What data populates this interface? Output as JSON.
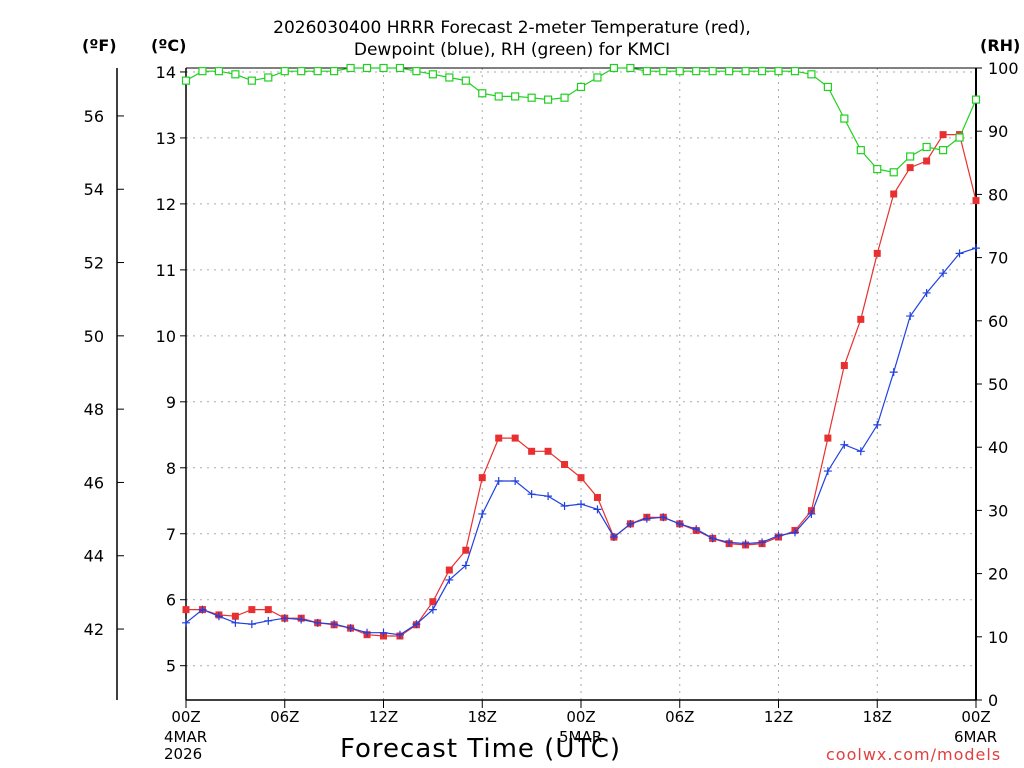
{
  "header": {
    "title_line1": "2026030400 HRRR Forecast 2-meter Temperature (red),",
    "title_line2": "Dewpoint (blue), RH (green) for KMCI",
    "unit_f": "(ºF)",
    "unit_c": "(ºC)",
    "unit_rh": "(RH)"
  },
  "xaxis": {
    "label": "Forecast Time (UTC)",
    "start_date_lines": [
      "4MAR",
      "2026"
    ],
    "mid_date": "5MAR",
    "end_date": "6MAR"
  },
  "credit": "coolwx.com/models",
  "colors": {
    "temperature": "#e83030",
    "dewpoint": "#2040e0",
    "rh": "#20d020",
    "grid": "#aaaaaa"
  },
  "chart_data": {
    "type": "line",
    "x_tick_labels": [
      "00Z",
      "06Z",
      "12Z",
      "18Z",
      "00Z",
      "06Z",
      "12Z",
      "18Z",
      "00Z"
    ],
    "x_tick_hours": [
      0,
      6,
      12,
      18,
      24,
      30,
      36,
      42,
      48
    ],
    "xlim": [
      0,
      48
    ],
    "ylim_c": [
      4.48,
      14.06
    ],
    "y_ticks_c": [
      5,
      6,
      7,
      8,
      9,
      10,
      11,
      12,
      13,
      14
    ],
    "y_ticks_f": [
      42,
      44,
      46,
      48,
      50,
      52,
      54,
      56
    ],
    "ylim_rh": [
      0,
      100
    ],
    "y_ticks_rh": [
      0,
      10,
      20,
      30,
      40,
      50,
      60,
      70,
      80,
      90,
      100
    ],
    "grid": true,
    "series": [
      {
        "name": "Temperature",
        "unit": "C",
        "marker": "square-filled",
        "x": [
          0,
          1,
          2,
          3,
          4,
          5,
          6,
          7,
          8,
          9,
          10,
          11,
          12,
          13,
          14,
          15,
          16,
          17,
          18,
          19,
          20,
          21,
          22,
          23,
          24,
          25,
          26,
          27,
          28,
          29,
          30,
          31,
          32,
          33,
          34,
          35,
          36,
          37,
          38,
          39,
          40,
          41,
          42,
          43,
          44,
          45,
          46,
          47,
          48
        ],
        "values": [
          5.85,
          5.85,
          5.77,
          5.75,
          5.85,
          5.85,
          5.72,
          5.72,
          5.65,
          5.62,
          5.57,
          5.47,
          5.45,
          5.45,
          5.62,
          5.97,
          6.45,
          6.75,
          7.85,
          8.45,
          8.45,
          8.25,
          8.25,
          8.05,
          7.85,
          7.55,
          6.95,
          7.15,
          7.25,
          7.25,
          7.15,
          7.05,
          6.93,
          6.85,
          6.83,
          6.85,
          6.95,
          7.05,
          7.35,
          8.45,
          9.55,
          10.25,
          11.25,
          12.15,
          12.55,
          12.65,
          13.05,
          13.05,
          12.05
        ]
      },
      {
        "name": "Dewpoint",
        "unit": "C",
        "marker": "plus",
        "x": [
          0,
          1,
          2,
          3,
          4,
          5,
          6,
          7,
          8,
          9,
          10,
          11,
          12,
          13,
          14,
          15,
          16,
          17,
          18,
          19,
          20,
          21,
          22,
          23,
          24,
          25,
          26,
          27,
          28,
          29,
          30,
          31,
          32,
          33,
          34,
          35,
          36,
          37,
          38,
          39,
          40,
          41,
          42,
          43,
          44,
          45,
          46,
          47,
          48
        ],
        "values": [
          5.65,
          5.85,
          5.75,
          5.65,
          5.63,
          5.68,
          5.72,
          5.7,
          5.65,
          5.63,
          5.57,
          5.5,
          5.5,
          5.47,
          5.63,
          5.85,
          6.3,
          6.52,
          7.3,
          7.8,
          7.8,
          7.6,
          7.57,
          7.42,
          7.45,
          7.37,
          6.95,
          7.15,
          7.23,
          7.25,
          7.15,
          7.07,
          6.93,
          6.87,
          6.85,
          6.87,
          6.97,
          7.02,
          7.3,
          7.95,
          8.35,
          8.25,
          8.65,
          9.45,
          10.3,
          10.65,
          10.95,
          11.25,
          11.33
        ]
      },
      {
        "name": "RH",
        "unit": "%",
        "marker": "square-open",
        "x": [
          0,
          1,
          2,
          3,
          4,
          5,
          6,
          7,
          8,
          9,
          10,
          11,
          12,
          13,
          14,
          15,
          16,
          17,
          18,
          19,
          20,
          21,
          22,
          23,
          24,
          25,
          26,
          27,
          28,
          29,
          30,
          31,
          32,
          33,
          34,
          35,
          36,
          37,
          38,
          39,
          40,
          41,
          42,
          43,
          44,
          45,
          46,
          47,
          48
        ],
        "values": [
          98,
          99.5,
          99.5,
          99,
          98,
          98.5,
          99.5,
          99.5,
          99.5,
          99.5,
          100,
          100,
          100,
          100,
          99.5,
          99,
          98.5,
          98,
          96,
          95.5,
          95.5,
          95.3,
          95,
          95.3,
          97,
          98.5,
          100,
          100,
          99.5,
          99.5,
          99.5,
          99.5,
          99.5,
          99.5,
          99.5,
          99.5,
          99.5,
          99.5,
          99,
          97,
          92,
          87,
          84,
          83.5,
          86,
          87.5,
          87,
          89,
          95
        ]
      }
    ]
  }
}
